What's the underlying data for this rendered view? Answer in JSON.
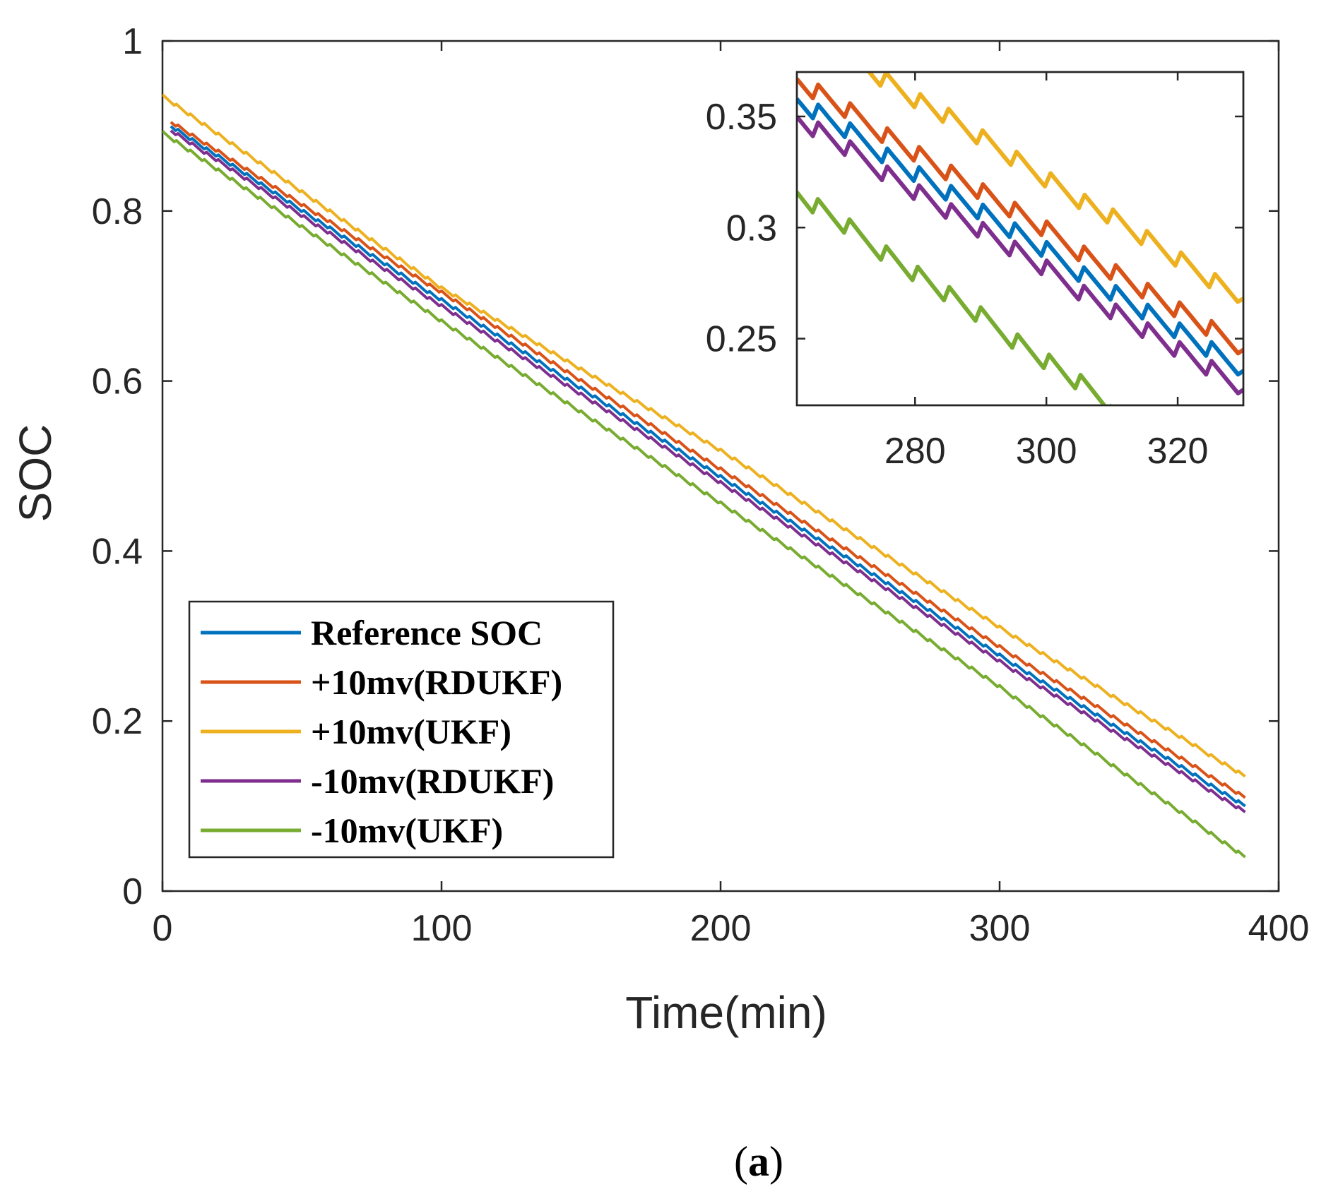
{
  "chart_data": [
    {
      "type": "line",
      "name": "main",
      "xlabel": "Time(min)",
      "ylabel": "SOC",
      "xlim": [
        0,
        400
      ],
      "ylim": [
        0,
        1
      ],
      "xticks": [
        0,
        100,
        200,
        300,
        400
      ],
      "yticks": [
        0,
        0.2,
        0.4,
        0.6,
        0.8,
        1
      ],
      "xtick_labels": [
        "0",
        "100",
        "200",
        "300",
        "400"
      ],
      "ytick_labels": [
        "0",
        "0.2",
        "0.4",
        "0.6",
        "0.8",
        "1"
      ],
      "legend_position": "bottom-left",
      "series": [
        {
          "name": "Reference SOC",
          "color": "#0072BD",
          "x": [
            3,
            100,
            200,
            300,
            388
          ],
          "y": [
            0.9,
            0.695,
            0.487,
            0.277,
            0.1
          ]
        },
        {
          "name": "+10mv(RDUKF)",
          "color": "#D95319",
          "x": [
            3,
            100,
            200,
            300,
            388
          ],
          "y": [
            0.905,
            0.704,
            0.496,
            0.287,
            0.11
          ]
        },
        {
          "name": "+10mv(UKF)",
          "color": "#EDB120",
          "x": [
            0,
            100,
            200,
            300,
            388
          ],
          "y": [
            0.935,
            0.709,
            0.518,
            0.31,
            0.135
          ]
        },
        {
          "name": "-10mv(RDUKF)",
          "color": "#7E2F8E",
          "x": [
            3,
            100,
            200,
            300,
            388
          ],
          "y": [
            0.895,
            0.688,
            0.48,
            0.27,
            0.093
          ]
        },
        {
          "name": "-10mv(UKF)",
          "color": "#77AC30",
          "x": [
            0,
            100,
            200,
            300,
            388
          ],
          "y": [
            0.892,
            0.67,
            0.456,
            0.24,
            0.04
          ]
        }
      ]
    },
    {
      "type": "line",
      "name": "inset",
      "xlim": [
        262,
        330
      ],
      "ylim": [
        0.22,
        0.37
      ],
      "xticks": [
        280,
        300,
        320
      ],
      "yticks": [
        0.25,
        0.3,
        0.35
      ],
      "xtick_labels": [
        "280",
        "300",
        "320"
      ],
      "ytick_labels": [
        "0.25",
        "0.3",
        "0.35"
      ],
      "series": [
        {
          "name": "Reference SOC",
          "color": "#0072BD",
          "x": [
            262,
            330
          ],
          "y": [
            0.357,
            0.2355
          ]
        },
        {
          "name": "+10mv(RDUKF)",
          "color": "#D95319",
          "x": [
            262,
            330
          ],
          "y": [
            0.366,
            0.245
          ]
        },
        {
          "name": "+10mv(UKF)",
          "color": "#EDB120",
          "x": [
            273,
            330
          ],
          "y": [
            0.371,
            0.268
          ]
        },
        {
          "name": "-10mv(RDUKF)",
          "color": "#7E2F8E",
          "x": [
            262,
            330
          ],
          "y": [
            0.349,
            0.227
          ]
        },
        {
          "name": "-10mv(UKF)",
          "color": "#77AC30",
          "x": [
            262,
            310
          ],
          "y": [
            0.315,
            0.22
          ]
        }
      ]
    }
  ],
  "caption": {
    "open": "(",
    "letter": "a",
    "close": ")"
  }
}
